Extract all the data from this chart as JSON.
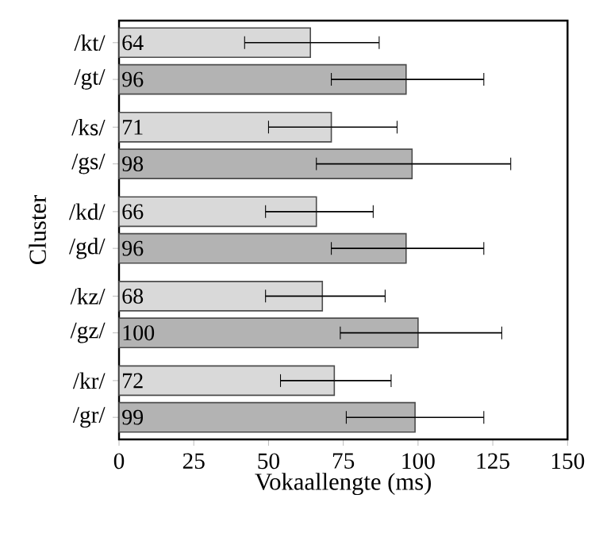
{
  "chart_data": {
    "type": "bar",
    "orientation": "horizontal",
    "xlabel": "Vokaallengte (ms)",
    "ylabel": "Cluster",
    "categories": [
      "/kt/",
      "/gt/",
      "/ks/",
      "/gs/",
      "/kd/",
      "/gd/",
      "/kz/",
      "/gz/",
      "/kr/",
      "/gr/"
    ],
    "values": [
      64,
      96,
      71,
      98,
      66,
      96,
      68,
      100,
      72,
      99
    ],
    "colors": [
      "#d9d9d9",
      "#b3b3b3",
      "#d9d9d9",
      "#b3b3b3",
      "#d9d9d9",
      "#b3b3b3",
      "#d9d9d9",
      "#b3b3b3",
      "#d9d9d9",
      "#b3b3b3"
    ],
    "errors": [
      [
        42,
        87
      ],
      [
        71,
        122
      ],
      [
        50,
        93
      ],
      [
        66,
        131
      ],
      [
        49,
        85
      ],
      [
        71,
        122
      ],
      [
        49,
        89
      ],
      [
        74,
        128
      ],
      [
        54,
        91
      ],
      [
        76,
        122
      ]
    ],
    "xlim": [
      0,
      150
    ],
    "xticks": [
      0,
      25,
      50,
      75,
      100,
      125,
      150
    ],
    "data_labels": true
  }
}
